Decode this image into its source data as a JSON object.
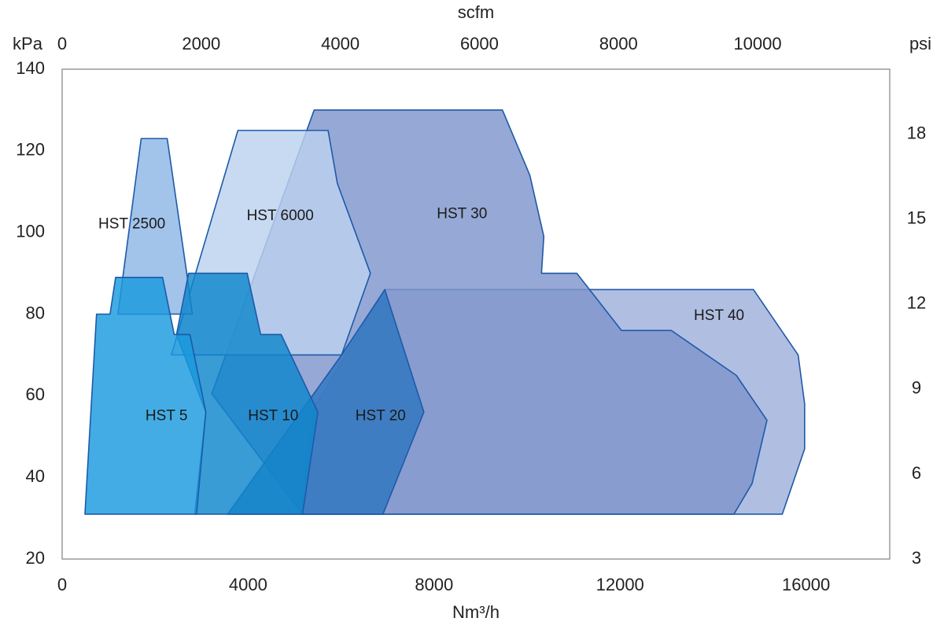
{
  "chart_data": {
    "type": "area",
    "xlabel": "Nm³/h",
    "x2label": "scfm",
    "ylabel": "kPa",
    "y2label": "psi",
    "xlim": [
      0,
      17800
    ],
    "xticks": [
      0,
      4000,
      8000,
      12000,
      16000
    ],
    "x2lim": [
      0,
      11900
    ],
    "x2ticks": [
      0,
      2000,
      4000,
      6000,
      8000,
      10000
    ],
    "ylim": [
      20,
      140
    ],
    "yticks": [
      20,
      40,
      60,
      80,
      100,
      120,
      140
    ],
    "y2lim": [
      3,
      20.3
    ],
    "y2ticks": [
      3,
      6,
      9,
      12,
      15,
      18
    ],
    "series": [
      {
        "name": "HST 40",
        "color": "#9fb0dc",
        "x": [
          5130,
          5420,
          6940,
          14870,
          15830,
          15970,
          15970,
          15490
        ],
        "y": [
          31,
          57,
          86,
          86,
          70,
          58,
          47,
          31
        ]
      },
      {
        "name": "HST 30",
        "color": "#7f95cc",
        "x": [
          3220,
          5420,
          9470,
          10060,
          10360,
          10310,
          11070,
          12030,
          13100,
          14500,
          15160,
          14840,
          14450,
          5170
        ],
        "y": [
          60.5,
          130,
          130,
          114,
          99,
          90,
          90,
          76,
          76,
          65,
          54,
          38.5,
          31,
          31
        ]
      },
      {
        "name": "HST 6000",
        "color": "#bcd2ee",
        "x": [
          2350,
          3780,
          5720,
          5920,
          6630,
          6010
        ],
        "y": [
          70,
          125,
          125,
          112,
          90,
          70
        ]
      },
      {
        "name": "HST 2500",
        "color": "#8db6e5",
        "x": [
          1200,
          1700,
          2260,
          2680,
          2800
        ],
        "y": [
          80,
          123,
          123,
          90,
          80
        ]
      },
      {
        "name": "HST 20",
        "color": "#2f76bf",
        "x": [
          3560,
          6010,
          6940,
          7780,
          6900
        ],
        "y": [
          31,
          70,
          86,
          56,
          31
        ]
      },
      {
        "name": "HST 10",
        "color": "#0f86cc",
        "x": [
          2850,
          3090,
          2460,
          2720,
          3980,
          4270,
          4710,
          5500,
          5170
        ],
        "y": [
          31,
          56,
          75,
          90,
          90,
          75,
          75,
          56,
          31
        ]
      },
      {
        "name": "HST 5",
        "color": "#1a9ade",
        "x": [
          490,
          740,
          1030,
          1150,
          2160,
          2410,
          2750,
          3090,
          2890
        ],
        "y": [
          31,
          80,
          80,
          89,
          89,
          75,
          75,
          56,
          31
        ]
      }
    ]
  }
}
